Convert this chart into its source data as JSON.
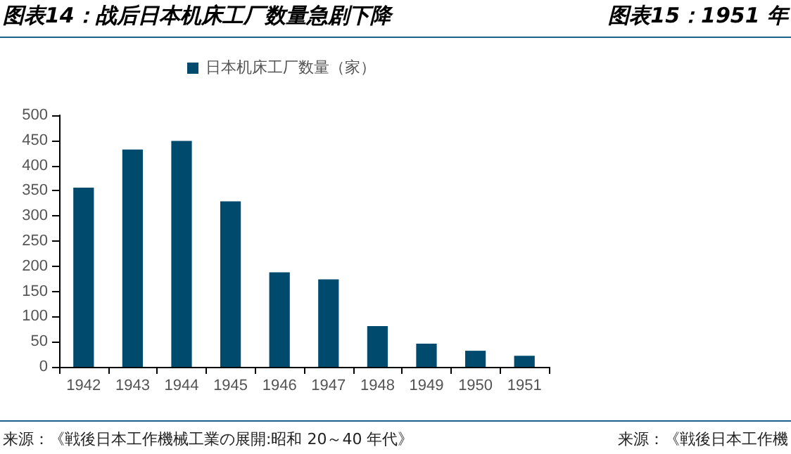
{
  "chart_data": {
    "type": "bar",
    "title": "图表14：战后日本机床工厂数量急剧下降",
    "categories": [
      "1942",
      "1943",
      "1944",
      "1945",
      "1946",
      "1947",
      "1948",
      "1949",
      "1950",
      "1951"
    ],
    "series": [
      {
        "name": "日本机床工厂数量（家）",
        "color": "#004a6e",
        "values": [
          356,
          432,
          449,
          329,
          188,
          174,
          81,
          46,
          32,
          22
        ]
      }
    ],
    "ylim": [
      0,
      500
    ],
    "yticks": [
      0,
      50,
      100,
      150,
      200,
      250,
      300,
      350,
      400,
      450,
      500
    ],
    "grid": false,
    "legend": "top",
    "annotations": [
      "来源：《戦後日本工作機械工業の展開:昭和 20～40 年代》",
      "图表15：1951 年",
      "来源：《戦後日本工作機"
    ]
  }
}
